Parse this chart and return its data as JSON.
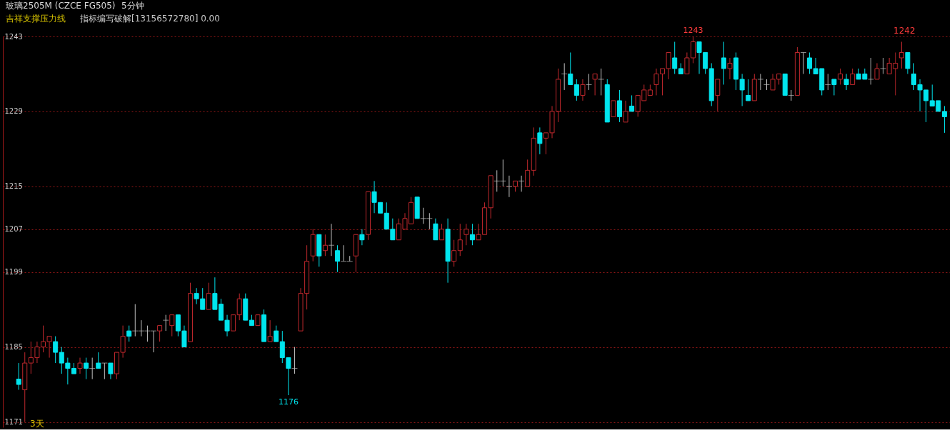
{
  "chart_data": {
    "type": "candlestick",
    "title": "玻璃2505M (CZCE FG505)",
    "subtitle": "5分钟",
    "annotations": [
      "吉祥支撑压力线",
      "指标编写破解[13156572780] 0.00",
      "3天",
      {
        "text": "1243",
        "y": 1243
      },
      "1242",
      {
        "text": "1176",
        "y": 1176
      }
    ],
    "categories": [
      null,
      null,
      null,
      null,
      null,
      null,
      null,
      null,
      null,
      null,
      null,
      null,
      null,
      null,
      null,
      null,
      null,
      null,
      null,
      null,
      null,
      null,
      null,
      null,
      null,
      null,
      null,
      null,
      null,
      null,
      null,
      null,
      null,
      null,
      null,
      null,
      null,
      null,
      null,
      null,
      null,
      null,
      null,
      null,
      null,
      null,
      null,
      null,
      null,
      null,
      null,
      null,
      null,
      null,
      null,
      null,
      null,
      null,
      null,
      null,
      null,
      null,
      null,
      null,
      null,
      null,
      null,
      null,
      null,
      null,
      null,
      null,
      null,
      null,
      null,
      null,
      null,
      null,
      null,
      null,
      null,
      null,
      null,
      null,
      null,
      null,
      null,
      null,
      null,
      null,
      null,
      null,
      null,
      null,
      null,
      null,
      null,
      null,
      null,
      null,
      null,
      null,
      null,
      null,
      null,
      null,
      null,
      null,
      null,
      null,
      null,
      null,
      null,
      null,
      null,
      null,
      null,
      null,
      null,
      null,
      null,
      null,
      null,
      null,
      null,
      null,
      null,
      null,
      null,
      null,
      null,
      null,
      null,
      null,
      null,
      null,
      null,
      null,
      null,
      null,
      null,
      null,
      null,
      null,
      null,
      null,
      null,
      null,
      null,
      null,
      null,
      null
    ],
    "ohlc": [
      [
        1179,
        1182,
        1177,
        1178
      ],
      [
        1177,
        1184,
        1171,
        1182
      ],
      [
        1182,
        1186,
        1180,
        1183
      ],
      [
        1183,
        1186,
        1182,
        1185
      ],
      [
        1185,
        1189,
        1184,
        1186
      ],
      [
        1186,
        1187,
        1183,
        1187
      ],
      [
        1186,
        1187,
        1182,
        1184
      ],
      [
        1184,
        1185,
        1180,
        1182
      ],
      [
        1182,
        1183,
        1178,
        1181
      ],
      [
        1181,
        1182,
        1180,
        1180
      ],
      [
        1181,
        1183,
        1180,
        1182
      ],
      [
        1182,
        1183,
        1179,
        1181
      ],
      [
        1181,
        1183,
        1179,
        1181
      ],
      [
        1182,
        1184,
        1181,
        1181
      ],
      [
        1182,
        1182,
        1179,
        1182
      ],
      [
        1182,
        1182,
        1179,
        1180
      ],
      [
        1180,
        1184,
        1179,
        1184
      ],
      [
        1184,
        1189,
        1183,
        1187
      ],
      [
        1188,
        1189,
        1186,
        1187
      ],
      [
        1188,
        1193,
        1187,
        1188
      ],
      [
        1188,
        1190,
        1187,
        1188
      ],
      [
        1188,
        1189,
        1186,
        1188
      ],
      [
        1188,
        1188,
        1184,
        1188
      ],
      [
        1188,
        1189,
        1186,
        1189
      ],
      [
        1190,
        1191,
        1188,
        1190
      ],
      [
        1189,
        1191,
        1187,
        1191
      ],
      [
        1191,
        1191,
        1187,
        1188
      ],
      [
        1188,
        1189,
        1185,
        1185
      ],
      [
        1186,
        1197,
        1186,
        1195
      ],
      [
        1195,
        1196,
        1193,
        1194
      ],
      [
        1194,
        1196,
        1192,
        1192
      ],
      [
        1192,
        1197,
        1192,
        1195
      ],
      [
        1195,
        1198,
        1192,
        1192
      ],
      [
        1193,
        1194,
        1190,
        1190
      ],
      [
        1190,
        1191,
        1187,
        1188
      ],
      [
        1188,
        1191,
        1188,
        1191
      ],
      [
        1191,
        1195,
        1190,
        1194
      ],
      [
        1194,
        1195,
        1190,
        1190
      ],
      [
        1190,
        1191,
        1189,
        1189
      ],
      [
        1189,
        1191,
        1189,
        1191
      ],
      [
        1191,
        1192,
        1186,
        1186
      ],
      [
        1186,
        1190,
        1186,
        1187
      ],
      [
        1188,
        1189,
        1186,
        1186
      ],
      [
        1186,
        1188,
        1182,
        1183
      ],
      [
        1183,
        1183,
        1176,
        1181
      ],
      [
        1181,
        1185,
        1180,
        1181
      ],
      [
        1188,
        1196,
        1188,
        1195
      ],
      [
        1195,
        1204,
        1192,
        1201
      ],
      [
        1202,
        1207,
        1201,
        1206
      ],
      [
        1206,
        1206,
        1200,
        1202
      ],
      [
        1203,
        1206,
        1202,
        1204
      ],
      [
        1204,
        1208,
        1202,
        1204
      ],
      [
        1203,
        1204,
        1199,
        1201
      ],
      [
        1201,
        1204,
        1201,
        1201
      ],
      [
        1201,
        1202,
        1201,
        1201
      ],
      [
        1202,
        1206,
        1199,
        1206
      ],
      [
        1206,
        1207,
        1204,
        1205
      ],
      [
        1206,
        1214,
        1205,
        1214
      ],
      [
        1214,
        1216,
        1210,
        1212
      ],
      [
        1212,
        1212,
        1210,
        1210
      ],
      [
        1210,
        1212,
        1207,
        1207
      ],
      [
        1207,
        1209,
        1205,
        1205
      ],
      [
        1205,
        1209,
        1205,
        1208
      ],
      [
        1207,
        1210,
        1207,
        1209
      ],
      [
        1208,
        1213,
        1208,
        1212
      ],
      [
        1213,
        1213,
        1209,
        1209
      ],
      [
        1209,
        1211,
        1208,
        1209
      ],
      [
        1209,
        1210,
        1207,
        1209
      ],
      [
        1208,
        1209,
        1205,
        1205
      ],
      [
        1205,
        1208,
        1205,
        1207
      ],
      [
        1207,
        1209,
        1197,
        1201
      ],
      [
        1201,
        1205,
        1200,
        1203
      ],
      [
        1203,
        1208,
        1202,
        1205
      ],
      [
        1206,
        1208,
        1204,
        1207
      ],
      [
        1206,
        1208,
        1204,
        1205
      ],
      [
        1205,
        1208,
        1205,
        1206
      ],
      [
        1206,
        1212,
        1206,
        1211
      ],
      [
        1211,
        1217,
        1209,
        1217
      ],
      [
        1216,
        1218,
        1214,
        1216
      ],
      [
        1216,
        1220,
        1215,
        1216
      ],
      [
        1215,
        1217,
        1213,
        1215
      ],
      [
        1215,
        1216,
        1214,
        1216
      ],
      [
        1216,
        1217,
        1214,
        1216
      ],
      [
        1215,
        1220,
        1215,
        1218
      ],
      [
        1218,
        1226,
        1217,
        1224
      ],
      [
        1225,
        1226,
        1221,
        1223
      ],
      [
        1224,
        1225,
        1221,
        1225
      ],
      [
        1225,
        1230,
        1224,
        1229
      ],
      [
        1229,
        1237,
        1227,
        1235
      ],
      [
        1236,
        1238,
        1233,
        1236
      ],
      [
        1236,
        1240,
        1234,
        1234
      ],
      [
        1234,
        1235,
        1231,
        1232
      ],
      [
        1232,
        1235,
        1231,
        1234
      ],
      [
        1234,
        1236,
        1233,
        1234
      ],
      [
        1235,
        1236,
        1232,
        1236
      ],
      [
        1235,
        1237,
        1232,
        1235
      ],
      [
        1234,
        1235,
        1227,
        1227
      ],
      [
        1228,
        1231,
        1228,
        1231
      ],
      [
        1231,
        1233,
        1227,
        1228
      ],
      [
        1227,
        1231,
        1227,
        1229
      ],
      [
        1230,
        1232,
        1229,
        1229
      ],
      [
        1229,
        1232,
        1228,
        1232
      ],
      [
        1231,
        1234,
        1231,
        1233
      ],
      [
        1232,
        1234,
        1232,
        1233
      ],
      [
        1234,
        1237,
        1232,
        1236
      ],
      [
        1236,
        1237,
        1232,
        1237
      ],
      [
        1237,
        1240,
        1235,
        1240
      ],
      [
        1239,
        1242,
        1236,
        1237
      ],
      [
        1237,
        1238,
        1236,
        1236
      ],
      [
        1236,
        1240,
        1236,
        1239
      ],
      [
        1239,
        1243,
        1238,
        1242
      ],
      [
        1242,
        1242,
        1236,
        1240
      ],
      [
        1240,
        1240,
        1236,
        1237
      ],
      [
        1237,
        1238,
        1230,
        1231
      ],
      [
        1232,
        1235,
        1229,
        1235
      ],
      [
        1239,
        1242,
        1234,
        1237
      ],
      [
        1237,
        1239,
        1235,
        1238
      ],
      [
        1239,
        1240,
        1233,
        1235
      ],
      [
        1235,
        1236,
        1230,
        1233
      ],
      [
        1232,
        1235,
        1231,
        1231
      ],
      [
        1231,
        1236,
        1231,
        1235
      ],
      [
        1235,
        1236,
        1233,
        1235
      ],
      [
        1234,
        1235,
        1233,
        1234
      ],
      [
        1233,
        1236,
        1233,
        1235
      ],
      [
        1235,
        1236,
        1234,
        1236
      ],
      [
        1236,
        1236,
        1232,
        1232
      ],
      [
        1232,
        1233,
        1231,
        1232
      ],
      [
        1232,
        1241,
        1232,
        1240
      ],
      [
        1240,
        1240,
        1236,
        1240
      ],
      [
        1239,
        1240,
        1236,
        1237
      ],
      [
        1237,
        1239,
        1236,
        1236
      ],
      [
        1237,
        1237,
        1232,
        1233
      ],
      [
        1234,
        1236,
        1233,
        1234
      ],
      [
        1235,
        1235,
        1232,
        1234
      ],
      [
        1235,
        1237,
        1234,
        1236
      ],
      [
        1235,
        1236,
        1233,
        1234
      ],
      [
        1234,
        1237,
        1234,
        1236
      ],
      [
        1236,
        1237,
        1235,
        1235
      ],
      [
        1236,
        1237,
        1235,
        1235
      ],
      [
        1235,
        1239,
        1234,
        1235
      ],
      [
        1235,
        1238,
        1235,
        1237
      ],
      [
        1237,
        1239,
        1236,
        1237
      ],
      [
        1236,
        1239,
        1236,
        1238
      ],
      [
        1237,
        1240,
        1232,
        1238
      ],
      [
        1239,
        1242,
        1237,
        1240
      ],
      [
        1240,
        1240,
        1236,
        1237
      ],
      [
        1236,
        1238,
        1233,
        1234
      ],
      [
        1234,
        1235,
        1229,
        1233
      ],
      [
        1233,
        1233,
        1227,
        1231
      ],
      [
        1231,
        1234,
        1230,
        1230
      ],
      [
        1231,
        1231,
        1229,
        1229
      ],
      [
        1229,
        1230,
        1225,
        1228
      ]
    ],
    "colors": [
      "#00e5ee",
      "#c0282d",
      "#c0282d",
      "#c0282d",
      "#c0282d",
      "#c0282d",
      "#00e5ee",
      "#00e5ee",
      "#00e5ee",
      "#00e5ee",
      "#c0282d",
      "#00e5ee",
      "#bfbfbf",
      "#00e5ee",
      "#bfbfbf",
      "#00e5ee",
      "#c0282d",
      "#c0282d",
      "#00e5ee",
      "#bfbfbf",
      "#bfbfbf",
      "#bfbfbf",
      "#bfbfbf",
      "#c0282d",
      "#bfbfbf",
      "#c0282d",
      "#00e5ee",
      "#00e5ee",
      "#c0282d",
      "#00e5ee",
      "#00e5ee",
      "#c0282d",
      "#00e5ee",
      "#00e5ee",
      "#00e5ee",
      "#c0282d",
      "#c0282d",
      "#00e5ee",
      "#00e5ee",
      "#c0282d",
      "#00e5ee",
      "#c0282d",
      "#00e5ee",
      "#00e5ee",
      "#00e5ee",
      "#bfbfbf",
      "#c0282d",
      "#c0282d",
      "#c0282d",
      "#00e5ee",
      "#c0282d",
      "#bfbfbf",
      "#00e5ee",
      "#bfbfbf",
      "#bfbfbf",
      "#c0282d",
      "#00e5ee",
      "#c0282d",
      "#00e5ee",
      "#00e5ee",
      "#00e5ee",
      "#00e5ee",
      "#c0282d",
      "#c0282d",
      "#c0282d",
      "#00e5ee",
      "#bfbfbf",
      "#bfbfbf",
      "#00e5ee",
      "#c0282d",
      "#00e5ee",
      "#c0282d",
      "#c0282d",
      "#c0282d",
      "#00e5ee",
      "#c0282d",
      "#c0282d",
      "#c0282d",
      "#bfbfbf",
      "#bfbfbf",
      "#bfbfbf",
      "#c0282d",
      "#bfbfbf",
      "#c0282d",
      "#c0282d",
      "#00e5ee",
      "#c0282d",
      "#c0282d",
      "#c0282d",
      "#bfbfbf",
      "#00e5ee",
      "#00e5ee",
      "#c0282d",
      "#bfbfbf",
      "#c0282d",
      "#bfbfbf",
      "#00e5ee",
      "#c0282d",
      "#00e5ee",
      "#c0282d",
      "#00e5ee",
      "#c0282d",
      "#c0282d",
      "#c0282d",
      "#c0282d",
      "#c0282d",
      "#c0282d",
      "#00e5ee",
      "#00e5ee",
      "#c0282d",
      "#c0282d",
      "#00e5ee",
      "#00e5ee",
      "#00e5ee",
      "#c0282d",
      "#00e5ee",
      "#c0282d",
      "#00e5ee",
      "#00e5ee",
      "#00e5ee",
      "#c0282d",
      "#bfbfbf",
      "#bfbfbf",
      "#c0282d",
      "#c0282d",
      "#00e5ee",
      "#bfbfbf",
      "#c0282d",
      "#bfbfbf",
      "#00e5ee",
      "#00e5ee",
      "#00e5ee",
      "#bfbfbf",
      "#00e5ee",
      "#c0282d",
      "#00e5ee",
      "#c0282d",
      "#00e5ee",
      "#00e5ee",
      "#bfbfbf",
      "#c0282d",
      "#bfbfbf",
      "#c0282d",
      "#c0282d",
      "#c0282d",
      "#00e5ee",
      "#00e5ee",
      "#00e5ee",
      "#00e5ee",
      "#00e5ee",
      "#00e5ee",
      "#00e5ee"
    ],
    "ylim": [
      1170,
      1243
    ],
    "yticks": [
      1171,
      1185,
      1199,
      1207,
      1215,
      1229,
      1243
    ],
    "grid": "y",
    "tick_labels": "y"
  }
}
